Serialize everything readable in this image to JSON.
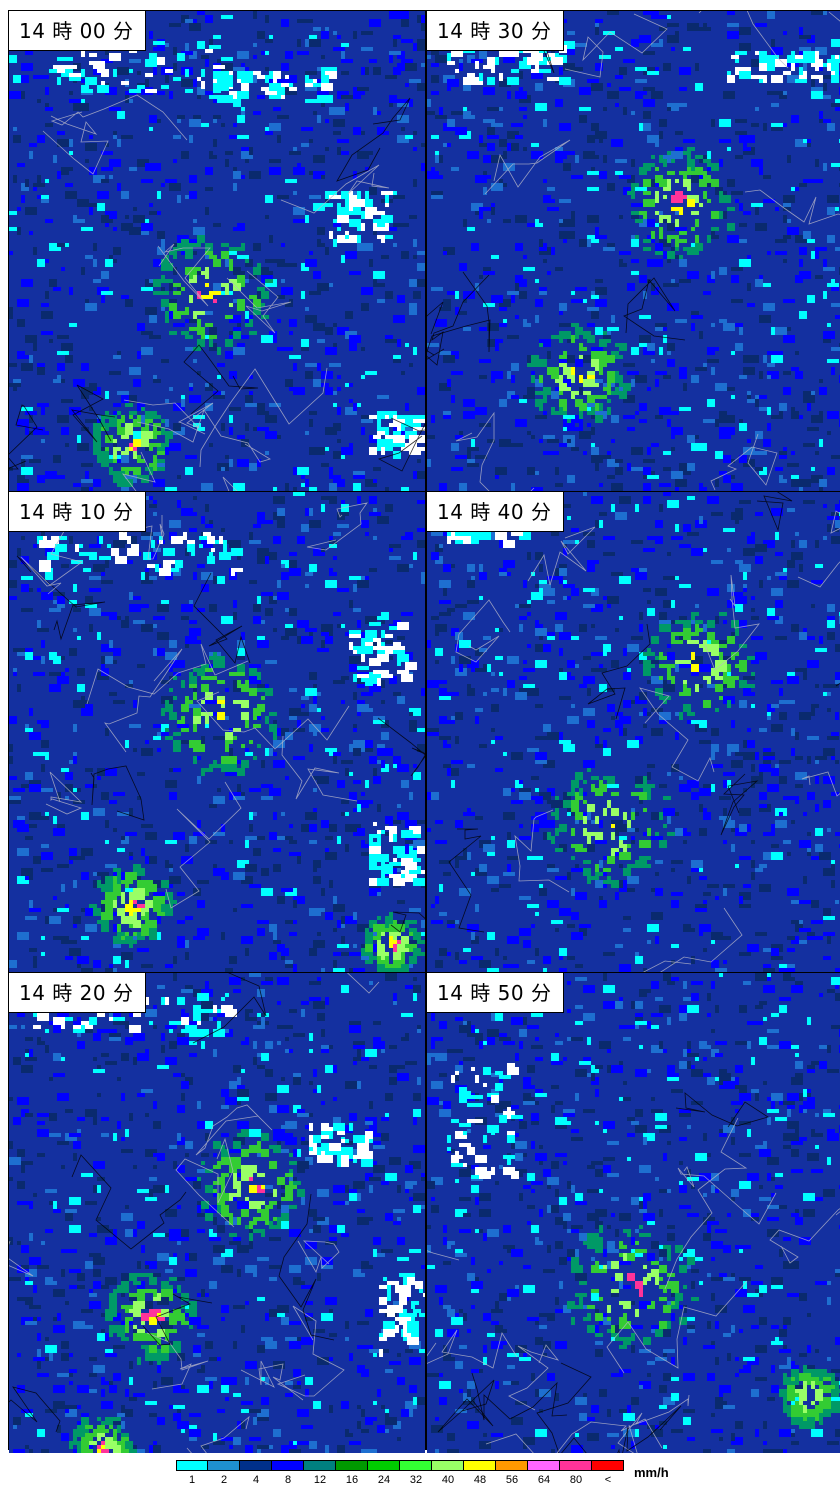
{
  "panels": [
    {
      "time_label": "14 時 00 分"
    },
    {
      "time_label": "14 時 30 分"
    },
    {
      "time_label": "14 時 10 分"
    },
    {
      "time_label": "14 時 40 分"
    },
    {
      "time_label": "14 時 20 分"
    },
    {
      "time_label": "14 時 50 分"
    }
  ],
  "legend": {
    "colors": [
      "#00ffff",
      "#1e90d0",
      "#00308a",
      "#0000ff",
      "#008080",
      "#009900",
      "#00cc00",
      "#33ff33",
      "#99ff66",
      "#ffff00",
      "#ff9900",
      "#ff66ff",
      "#ff3399",
      "#ff0000"
    ],
    "ticks": [
      "1",
      "2",
      "4",
      "8",
      "12",
      "16",
      "24",
      "32",
      "40",
      "48",
      "56",
      "64",
      "80",
      "<"
    ],
    "unit": "mm/h"
  }
}
